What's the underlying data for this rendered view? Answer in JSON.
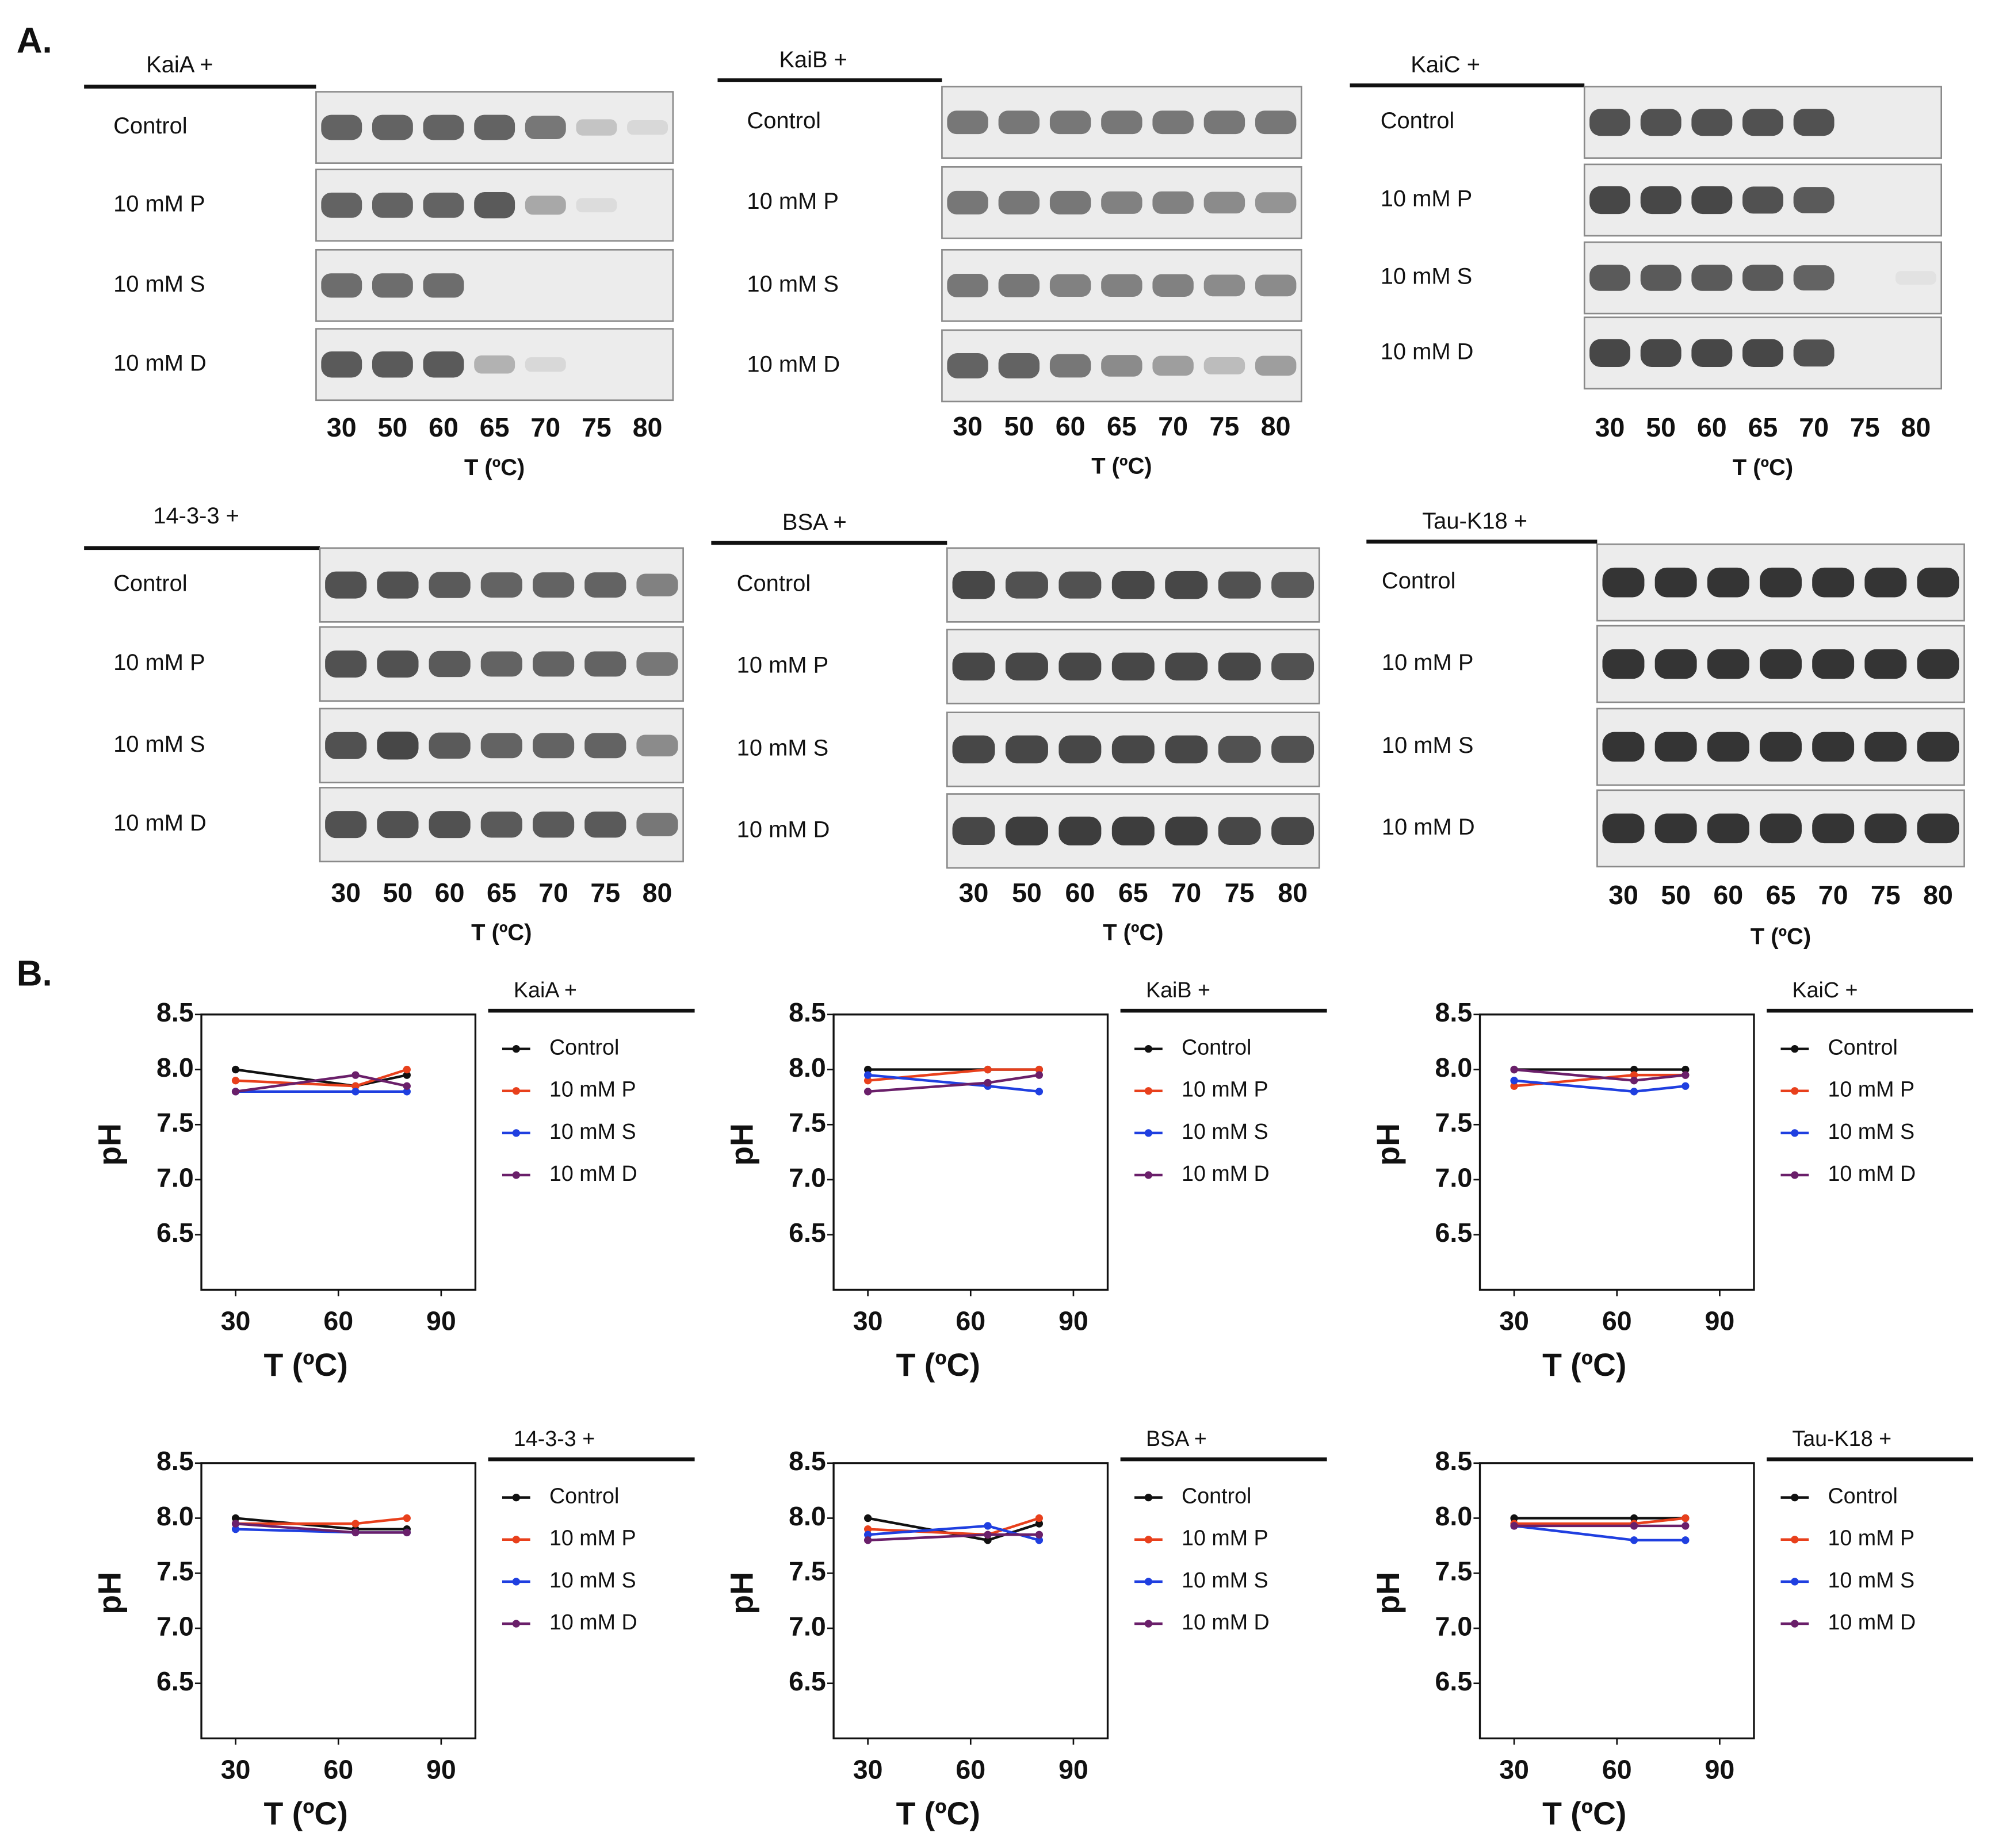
{
  "panel_labels": [
    "A.",
    "B."
  ],
  "gels": [
    {
      "title": "KaiA +",
      "lanes": [
        30,
        50,
        60,
        65,
        70,
        75,
        80
      ],
      "xlabel": "T (ºC)",
      "rows": [
        {
          "label": "Control",
          "band_intensity": [
            0.7,
            0.7,
            0.7,
            0.7,
            0.6,
            0.2,
            0.1
          ]
        },
        {
          "label": "10 mM P",
          "band_intensity": [
            0.7,
            0.7,
            0.7,
            0.75,
            0.35,
            0.08,
            0
          ]
        },
        {
          "label": "10 mM S",
          "band_intensity": [
            0.65,
            0.65,
            0.65,
            0,
            0,
            0,
            0
          ]
        },
        {
          "label": "10 mM D",
          "band_intensity": [
            0.75,
            0.75,
            0.75,
            0.3,
            0.1,
            0,
            0
          ]
        }
      ]
    },
    {
      "title": "KaiB +",
      "lanes": [
        30,
        50,
        60,
        65,
        70,
        75,
        80
      ],
      "xlabel": "T (ºC)",
      "rows": [
        {
          "label": "Control",
          "band_intensity": [
            0.6,
            0.6,
            0.6,
            0.6,
            0.6,
            0.6,
            0.6
          ]
        },
        {
          "label": "10 mM P",
          "band_intensity": [
            0.6,
            0.6,
            0.6,
            0.55,
            0.55,
            0.5,
            0.45
          ]
        },
        {
          "label": "10 mM S",
          "band_intensity": [
            0.6,
            0.6,
            0.55,
            0.55,
            0.55,
            0.5,
            0.5
          ]
        },
        {
          "label": "10 mM D",
          "band_intensity": [
            0.7,
            0.7,
            0.6,
            0.5,
            0.4,
            0.25,
            0.4
          ]
        }
      ]
    },
    {
      "title": "KaiC +",
      "lanes": [
        30,
        50,
        60,
        65,
        70,
        75,
        80
      ],
      "xlabel": "T (ºC)",
      "rows": [
        {
          "label": "Control",
          "band_intensity": [
            0.8,
            0.8,
            0.8,
            0.8,
            0.8,
            0,
            0
          ]
        },
        {
          "label": "10 mM P",
          "band_intensity": [
            0.85,
            0.85,
            0.85,
            0.8,
            0.75,
            0,
            0
          ]
        },
        {
          "label": "10 mM S",
          "band_intensity": [
            0.75,
            0.75,
            0.75,
            0.75,
            0.7,
            0,
            0.05
          ]
        },
        {
          "label": "10 mM D",
          "band_intensity": [
            0.85,
            0.85,
            0.85,
            0.85,
            0.8,
            0,
            0
          ]
        }
      ]
    },
    {
      "title": "14-3-3 +",
      "lanes": [
        30,
        50,
        60,
        65,
        70,
        75,
        80
      ],
      "xlabel": "T (ºC)",
      "rows": [
        {
          "label": "Control",
          "band_intensity": [
            0.8,
            0.8,
            0.75,
            0.7,
            0.7,
            0.7,
            0.55
          ]
        },
        {
          "label": "10 mM P",
          "band_intensity": [
            0.8,
            0.8,
            0.75,
            0.7,
            0.7,
            0.7,
            0.6
          ]
        },
        {
          "label": "10 mM S",
          "band_intensity": [
            0.8,
            0.85,
            0.75,
            0.7,
            0.7,
            0.7,
            0.5
          ]
        },
        {
          "label": "10 mM D",
          "band_intensity": [
            0.8,
            0.8,
            0.8,
            0.75,
            0.75,
            0.75,
            0.6
          ]
        }
      ]
    },
    {
      "title": "BSA +",
      "lanes": [
        30,
        50,
        60,
        65,
        70,
        75,
        80
      ],
      "xlabel": "T (ºC)",
      "rows": [
        {
          "label": "Control",
          "band_intensity": [
            0.85,
            0.8,
            0.8,
            0.85,
            0.85,
            0.8,
            0.75
          ]
        },
        {
          "label": "10 mM P",
          "band_intensity": [
            0.85,
            0.85,
            0.85,
            0.85,
            0.85,
            0.85,
            0.8
          ]
        },
        {
          "label": "10 mM S",
          "band_intensity": [
            0.85,
            0.85,
            0.85,
            0.85,
            0.85,
            0.8,
            0.8
          ]
        },
        {
          "label": "10 mM D",
          "band_intensity": [
            0.85,
            0.9,
            0.9,
            0.9,
            0.9,
            0.85,
            0.85
          ]
        }
      ]
    },
    {
      "title": "Tau-K18 +",
      "lanes": [
        30,
        50,
        60,
        65,
        70,
        75,
        80
      ],
      "xlabel": "T (ºC)",
      "rows": [
        {
          "label": "Control",
          "band_intensity": [
            0.95,
            0.95,
            0.95,
            0.95,
            0.95,
            0.95,
            0.95
          ]
        },
        {
          "label": "10 mM P",
          "band_intensity": [
            0.95,
            0.95,
            0.95,
            0.95,
            0.95,
            0.95,
            0.95
          ]
        },
        {
          "label": "10 mM S",
          "band_intensity": [
            0.95,
            0.95,
            0.95,
            0.95,
            0.95,
            0.95,
            0.95
          ]
        },
        {
          "label": "10 mM D",
          "band_intensity": [
            0.95,
            0.95,
            0.95,
            0.95,
            0.95,
            0.95,
            0.95
          ]
        }
      ]
    }
  ],
  "chart_data": [
    {
      "type": "line",
      "title": "KaiA +",
      "xlabel": "T (ºC)",
      "ylabel": "pH",
      "x": [
        30,
        65,
        80
      ],
      "xlim": [
        20,
        100
      ],
      "xticks": [
        30,
        60,
        90
      ],
      "ylim": [
        6.0,
        8.5
      ],
      "yticks": [
        6.5,
        {
          "value": 7.0,
          "label": "7.0"
        },
        7.5,
        {
          "value": 8.0,
          "label": "8.0"
        },
        8.5
      ],
      "series": [
        {
          "name": "Control",
          "color": "#111111",
          "values": [
            8.0,
            7.85,
            7.95
          ]
        },
        {
          "name": "10 mM P",
          "color": "#e8401c",
          "values": [
            7.9,
            7.85,
            8.0
          ]
        },
        {
          "name": "10 mM S",
          "color": "#1f3fe0",
          "values": [
            7.8,
            7.8,
            7.8
          ]
        },
        {
          "name": "10 mM D",
          "color": "#6a1f6a",
          "values": [
            7.8,
            7.95,
            7.85
          ]
        }
      ]
    },
    {
      "type": "line",
      "title": "KaiB +",
      "xlabel": "T (ºC)",
      "ylabel": "pH",
      "x": [
        30,
        65,
        80
      ],
      "xlim": [
        20,
        100
      ],
      "xticks": [
        30,
        60,
        90
      ],
      "ylim": [
        6.0,
        8.5
      ],
      "yticks": [
        6.5,
        {
          "value": 7.0,
          "label": "7.0"
        },
        7.5,
        {
          "value": 8.0,
          "label": "8.0"
        },
        8.5
      ],
      "series": [
        {
          "name": "Control",
          "color": "#111111",
          "values": [
            8.0,
            8.0,
            8.0
          ]
        },
        {
          "name": "10 mM P",
          "color": "#e8401c",
          "values": [
            7.9,
            8.0,
            8.0
          ]
        },
        {
          "name": "10 mM S",
          "color": "#1f3fe0",
          "values": [
            7.95,
            7.85,
            7.8
          ]
        },
        {
          "name": "10 mM D",
          "color": "#6a1f6a",
          "values": [
            7.8,
            7.88,
            7.95
          ]
        }
      ]
    },
    {
      "type": "line",
      "title": "KaiC +",
      "xlabel": "T (ºC)",
      "ylabel": "pH",
      "x": [
        30,
        65,
        80
      ],
      "xlim": [
        20,
        100
      ],
      "xticks": [
        30,
        60,
        90
      ],
      "ylim": [
        6.0,
        8.5
      ],
      "yticks": [
        6.5,
        {
          "value": 7.0,
          "label": "7.0"
        },
        7.5,
        {
          "value": 8.0,
          "label": "8.0"
        },
        8.5
      ],
      "series": [
        {
          "name": "Control",
          "color": "#111111",
          "values": [
            8.0,
            8.0,
            8.0
          ]
        },
        {
          "name": "10 mM P",
          "color": "#e8401c",
          "values": [
            7.85,
            7.95,
            7.95
          ]
        },
        {
          "name": "10 mM S",
          "color": "#1f3fe0",
          "values": [
            7.9,
            7.8,
            7.85
          ]
        },
        {
          "name": "10 mM D",
          "color": "#6a1f6a",
          "values": [
            8.0,
            7.9,
            7.95
          ]
        }
      ]
    },
    {
      "type": "line",
      "title": "14-3-3 +",
      "xlabel": "T (ºC)",
      "ylabel": "pH",
      "x": [
        30,
        65,
        80
      ],
      "xlim": [
        20,
        100
      ],
      "xticks": [
        30,
        60,
        90
      ],
      "ylim": [
        6.0,
        8.5
      ],
      "yticks": [
        6.5,
        {
          "value": 7.0,
          "label": "7.0"
        },
        7.5,
        {
          "value": 8.0,
          "label": "8.0"
        },
        8.5
      ],
      "series": [
        {
          "name": "Control",
          "color": "#111111",
          "values": [
            8.0,
            7.9,
            7.9
          ]
        },
        {
          "name": "10 mM P",
          "color": "#e8401c",
          "values": [
            7.95,
            7.95,
            8.0
          ]
        },
        {
          "name": "10 mM S",
          "color": "#1f3fe0",
          "values": [
            7.9,
            7.87,
            7.87
          ]
        },
        {
          "name": "10 mM D",
          "color": "#6a1f6a",
          "values": [
            7.95,
            7.87,
            7.87
          ]
        }
      ]
    },
    {
      "type": "line",
      "title": "BSA +",
      "xlabel": "T (ºC)",
      "ylabel": "pH",
      "x": [
        30,
        65,
        80
      ],
      "xlim": [
        20,
        100
      ],
      "xticks": [
        30,
        60,
        90
      ],
      "ylim": [
        6.0,
        8.5
      ],
      "yticks": [
        6.5,
        {
          "value": 7.0,
          "label": "7.0"
        },
        7.5,
        {
          "value": 8.0,
          "label": "8.0"
        },
        8.5
      ],
      "series": [
        {
          "name": "Control",
          "color": "#111111",
          "values": [
            8.0,
            7.8,
            7.95
          ]
        },
        {
          "name": "10 mM P",
          "color": "#e8401c",
          "values": [
            7.9,
            7.85,
            8.0
          ]
        },
        {
          "name": "10 mM S",
          "color": "#1f3fe0",
          "values": [
            7.85,
            7.93,
            7.8
          ]
        },
        {
          "name": "10 mM D",
          "color": "#6a1f6a",
          "values": [
            7.8,
            7.85,
            7.85
          ]
        }
      ]
    },
    {
      "type": "line",
      "title": "Tau-K18 +",
      "xlabel": "T (ºC)",
      "ylabel": "pH",
      "x": [
        30,
        65,
        80
      ],
      "xlim": [
        20,
        100
      ],
      "xticks": [
        30,
        60,
        90
      ],
      "ylim": [
        6.0,
        8.5
      ],
      "yticks": [
        6.5,
        {
          "value": 7.0,
          "label": "7.0"
        },
        7.5,
        {
          "value": 8.0,
          "label": "8.0"
        },
        8.5
      ],
      "series": [
        {
          "name": "Control",
          "color": "#111111",
          "values": [
            8.0,
            8.0,
            8.0
          ]
        },
        {
          "name": "10 mM P",
          "color": "#e8401c",
          "values": [
            7.95,
            7.95,
            8.0
          ]
        },
        {
          "name": "10 mM S",
          "color": "#1f3fe0",
          "values": [
            7.93,
            7.8,
            7.8
          ]
        },
        {
          "name": "10 mM D",
          "color": "#6a1f6a",
          "values": [
            7.93,
            7.93,
            7.93
          ]
        }
      ]
    }
  ]
}
